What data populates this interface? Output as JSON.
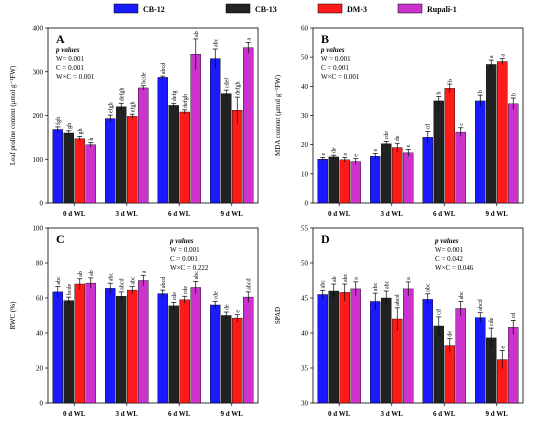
{
  "chart_data": [
    {
      "type": "bar",
      "panel": "A",
      "ylabel": "Leaf proline content (μmol g⁻¹FW)",
      "ylim": [
        0,
        400
      ],
      "yticks": [
        0,
        100,
        200,
        300,
        400
      ],
      "categories": [
        "0 d WL",
        "3 d WL",
        "6 d WL",
        "9 d WL"
      ],
      "series": [
        {
          "name": "CB-12",
          "values": [
            168,
            193,
            287,
            330
          ],
          "errors": [
            6,
            8,
            3,
            22
          ],
          "letters": [
            "fgh",
            "efgh",
            "abcd",
            "abc"
          ]
        },
        {
          "name": "CB-13",
          "values": [
            160,
            220,
            223,
            250
          ],
          "errors": [
            5,
            8,
            5,
            8
          ],
          "letters": [
            "gh",
            "defgh",
            "defg",
            "cdef"
          ]
        },
        {
          "name": "DM-3",
          "values": [
            147,
            198,
            208,
            212
          ],
          "errors": [
            5,
            5,
            5,
            30
          ],
          "letters": [
            "gh",
            "efgh",
            "defgh",
            "defgh"
          ]
        },
        {
          "name": "Rupali-1",
          "values": [
            133,
            263,
            340,
            355
          ],
          "errors": [
            5,
            5,
            35,
            12
          ],
          "letters": [
            "h",
            "bcde",
            "ab",
            "a"
          ]
        }
      ],
      "stats": {
        "heading": "p values",
        "lines": [
          "W= 0.001",
          "C = 0.001",
          "W×C = 0.001"
        ]
      }
    },
    {
      "type": "bar",
      "panel": "B",
      "ylabel": "MDA content (μmol g⁻¹FW)",
      "ylim": [
        0,
        60
      ],
      "yticks": [
        0,
        10,
        20,
        30,
        40,
        50,
        60
      ],
      "categories": [
        "0 d WL",
        "3 d WL",
        "6 d WL",
        "9 d WL"
      ],
      "series": [
        {
          "name": "CB-12",
          "values": [
            15,
            16,
            22.5,
            35
          ],
          "errors": [
            0.6,
            1,
            2,
            2
          ],
          "letters": [
            "e",
            "e",
            "cd",
            "b"
          ]
        },
        {
          "name": "CB-13",
          "values": [
            15.8,
            20.3,
            35,
            47.5
          ],
          "errors": [
            0.6,
            0.8,
            1.5,
            1.5
          ],
          "letters": [
            "de",
            "cde",
            "b",
            "a"
          ]
        },
        {
          "name": "DM-3",
          "values": [
            14.8,
            19,
            39.3,
            48.5
          ],
          "errors": [
            0.8,
            1.5,
            1.5,
            1
          ],
          "letters": [
            "e",
            "de",
            "b",
            "a"
          ]
        },
        {
          "name": "Rupali-1",
          "values": [
            14.2,
            17.2,
            24.3,
            34
          ],
          "errors": [
            1,
            1.2,
            1.5,
            2
          ],
          "letters": [
            "e",
            "e",
            "c",
            "b"
          ]
        }
      ],
      "stats": {
        "heading": "p values",
        "lines": [
          "W = 0.001",
          "C = 0.001",
          "W×C = 0.001"
        ]
      }
    },
    {
      "type": "bar",
      "panel": "C",
      "ylabel": "RWC (%)",
      "ylim": [
        0,
        100
      ],
      "yticks": [
        0,
        20,
        40,
        60,
        80,
        100
      ],
      "categories": [
        "0 d WL",
        "3 d WL",
        "6 d WL",
        "9 d WL"
      ],
      "series": [
        {
          "name": "CB-12",
          "values": [
            63.5,
            65.5,
            62.5,
            56
          ],
          "errors": [
            3,
            3,
            2,
            2
          ],
          "letters": [
            "abc",
            "abc",
            "abcd",
            "cde"
          ]
        },
        {
          "name": "CB-13",
          "values": [
            58.5,
            61,
            55.5,
            50
          ],
          "errors": [
            2,
            2.5,
            2,
            2
          ],
          "letters": [
            "bcde",
            "abcd",
            "cde",
            "de"
          ]
        },
        {
          "name": "DM-3",
          "values": [
            68,
            64.5,
            59,
            48.5
          ],
          "errors": [
            3,
            2,
            2,
            2
          ],
          "letters": [
            "ab",
            "abc",
            "cde",
            "e"
          ]
        },
        {
          "name": "Rupali-1",
          "values": [
            68.5,
            70,
            66,
            60.5
          ],
          "errors": [
            3,
            3,
            3.5,
            3
          ],
          "letters": [
            "ab",
            "a",
            "abc",
            "abcd"
          ]
        }
      ],
      "stats": {
        "heading": "p values",
        "lines": [
          "W = 0.001",
          "C = 0.001",
          "W×C = 0.222"
        ]
      }
    },
    {
      "type": "bar",
      "panel": "D",
      "ylabel": "SPAD",
      "ylim": [
        30,
        55
      ],
      "yticks": [
        30,
        35,
        40,
        45,
        50,
        55
      ],
      "categories": [
        "0 d WL",
        "3 d WL",
        "6 d WL",
        "9 d WL"
      ],
      "series": [
        {
          "name": "CB-12",
          "values": [
            45.5,
            44.5,
            44.8,
            42.2
          ],
          "errors": [
            0.6,
            1.2,
            0.8,
            0.7
          ],
          "letters": [
            "abc",
            "abc",
            "abc",
            "abcd"
          ]
        },
        {
          "name": "CB-13",
          "values": [
            46,
            45,
            41,
            39.3
          ],
          "errors": [
            1,
            1,
            1.3,
            1.4
          ],
          "letters": [
            "ab",
            "abc",
            "cd",
            "cde"
          ]
        },
        {
          "name": "DM-3",
          "values": [
            45.8,
            42,
            38.2,
            36.2
          ],
          "errors": [
            1.2,
            1.6,
            1,
            1.3
          ],
          "letters": [
            "abc",
            "abcd",
            "de",
            "e"
          ]
        },
        {
          "name": "Rupali-1",
          "values": [
            46.3,
            46.3,
            43.5,
            40.8
          ],
          "errors": [
            1,
            1,
            1,
            1
          ],
          "letters": [
            "a",
            "a",
            "abc",
            "cd"
          ]
        }
      ],
      "stats": {
        "heading": "p values",
        "lines": [
          "W= 0.001",
          "C = 0.042",
          "W×C = 0.046"
        ]
      }
    }
  ],
  "legend": [
    {
      "name": "CB-12",
      "color": "#1a1aff"
    },
    {
      "name": "CB-13",
      "color": "#222222"
    },
    {
      "name": "DM-3",
      "color": "#ff1a1a"
    },
    {
      "name": "Rupali-1",
      "color": "#cc33cc"
    }
  ]
}
